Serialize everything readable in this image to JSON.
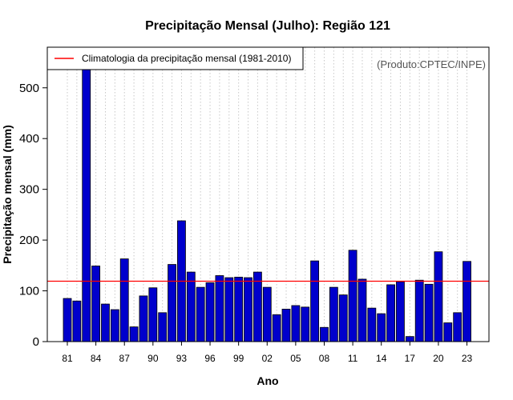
{
  "chart_data": {
    "type": "bar",
    "title": "Precipitação Mensal (Julho): Região 121",
    "xlabel": "Ano",
    "ylabel": "Precipitação mensal (mm)",
    "credit": "(Produto:CPTEC/INPE)",
    "ylim": [
      0,
      580
    ],
    "yticks": [
      0,
      100,
      200,
      300,
      400,
      500
    ],
    "grid": "vertical dotted",
    "legend_position": "top-left",
    "years": [
      1981,
      1982,
      1983,
      1984,
      1985,
      1986,
      1987,
      1988,
      1989,
      1990,
      1991,
      1992,
      1993,
      1994,
      1995,
      1996,
      1997,
      1998,
      1999,
      2000,
      2001,
      2002,
      2003,
      2004,
      2005,
      2006,
      2007,
      2008,
      2009,
      2010,
      2011,
      2012,
      2013,
      2014,
      2015,
      2016,
      2017,
      2018,
      2019,
      2020,
      2021,
      2022,
      2023
    ],
    "values": [
      85,
      80,
      538,
      149,
      74,
      63,
      163,
      29,
      90,
      106,
      57,
      152,
      238,
      137,
      107,
      116,
      130,
      126,
      127,
      126,
      137,
      107,
      53,
      64,
      71,
      68,
      159,
      28,
      107,
      92,
      180,
      123,
      66,
      55,
      112,
      118,
      10,
      121,
      113,
      177,
      37,
      57,
      158
    ],
    "tick_labels": [
      {
        "label": "81",
        "year": 1981
      },
      {
        "label": "84",
        "year": 1984
      },
      {
        "label": "87",
        "year": 1987
      },
      {
        "label": "90",
        "year": 1990
      },
      {
        "label": "93",
        "year": 1993
      },
      {
        "label": "96",
        "year": 1996
      },
      {
        "label": "99",
        "year": 1999
      },
      {
        "label": "02",
        "year": 2002
      },
      {
        "label": "05",
        "year": 2005
      },
      {
        "label": "08",
        "year": 2008
      },
      {
        "label": "11",
        "year": 2011
      },
      {
        "label": "14",
        "year": 2014
      },
      {
        "label": "17",
        "year": 2017
      },
      {
        "label": "20",
        "year": 2020
      },
      {
        "label": "23",
        "year": 2023
      }
    ],
    "climatology": {
      "label": "Climatologia da precipitação mensal (1981-2010)",
      "value": 119,
      "color": "#ff0000"
    },
    "bar_color": "#0000cc"
  }
}
